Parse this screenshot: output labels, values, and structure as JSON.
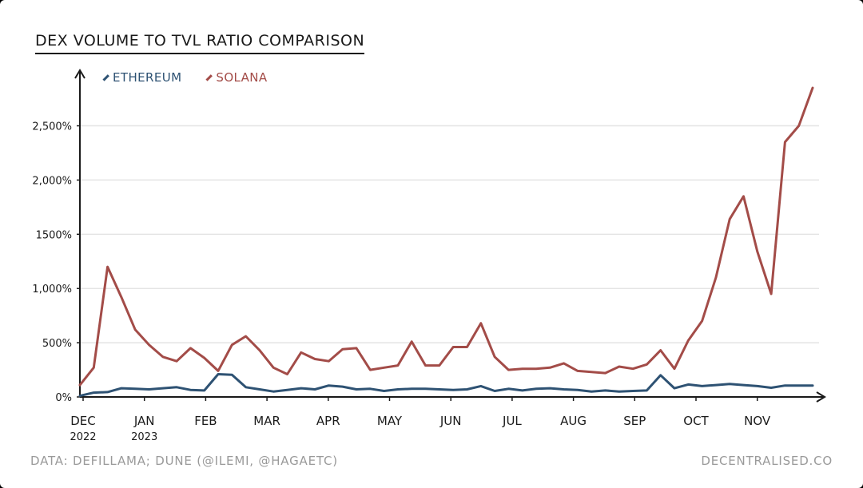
{
  "footer": {
    "source": "DATA: DEFILLAMA; DUNE (@ILEMI, @HAGAETC)",
    "brand": "DECENTRALISED.CO"
  },
  "chart_data": {
    "type": "line",
    "title": "DEX VOLUME TO TVL RATIO COMPARISON",
    "xlabel": "",
    "ylabel": "",
    "ylim": [
      0,
      2850
    ],
    "y_ticks": [
      0,
      500,
      1000,
      1500,
      2000,
      2500
    ],
    "y_tick_labels": [
      "0%",
      "500%",
      "1,000%",
      "1500%",
      "2,000%",
      "2,500%"
    ],
    "x_tick_labels": [
      {
        "label": "DEC",
        "sub": "2022"
      },
      {
        "label": "JAN",
        "sub": "2023"
      },
      {
        "label": "FEB",
        "sub": ""
      },
      {
        "label": "MAR",
        "sub": ""
      },
      {
        "label": "APR",
        "sub": ""
      },
      {
        "label": "MAY",
        "sub": ""
      },
      {
        "label": "JUN",
        "sub": ""
      },
      {
        "label": "JUL",
        "sub": ""
      },
      {
        "label": "AUG",
        "sub": ""
      },
      {
        "label": "SEP",
        "sub": ""
      },
      {
        "label": "OCT",
        "sub": ""
      },
      {
        "label": "NOV",
        "sub": ""
      }
    ],
    "grid": true,
    "legend_position": "top-left",
    "series": [
      {
        "name": "ETHEREUM",
        "color": "#2e5273",
        "values": [
          10,
          40,
          45,
          80,
          75,
          70,
          80,
          90,
          65,
          60,
          210,
          205,
          90,
          70,
          50,
          65,
          80,
          70,
          105,
          95,
          70,
          75,
          55,
          70,
          75,
          75,
          70,
          65,
          70,
          100,
          55,
          75,
          60,
          75,
          80,
          70,
          65,
          50,
          60,
          50,
          55,
          60,
          200,
          80,
          115,
          100,
          110,
          120,
          110,
          100,
          85,
          105,
          105,
          105
        ]
      },
      {
        "name": "SOLANA",
        "color": "#a34c48",
        "values": [
          110,
          270,
          1200,
          920,
          620,
          480,
          370,
          330,
          450,
          360,
          240,
          480,
          560,
          430,
          270,
          210,
          410,
          350,
          330,
          440,
          450,
          250,
          270,
          290,
          510,
          290,
          290,
          460,
          460,
          680,
          370,
          250,
          260,
          260,
          270,
          310,
          240,
          230,
          220,
          280,
          260,
          300,
          430,
          260,
          520,
          700,
          1100,
          1640,
          1850,
          1340,
          950,
          2350,
          2500,
          2850
        ]
      }
    ]
  }
}
